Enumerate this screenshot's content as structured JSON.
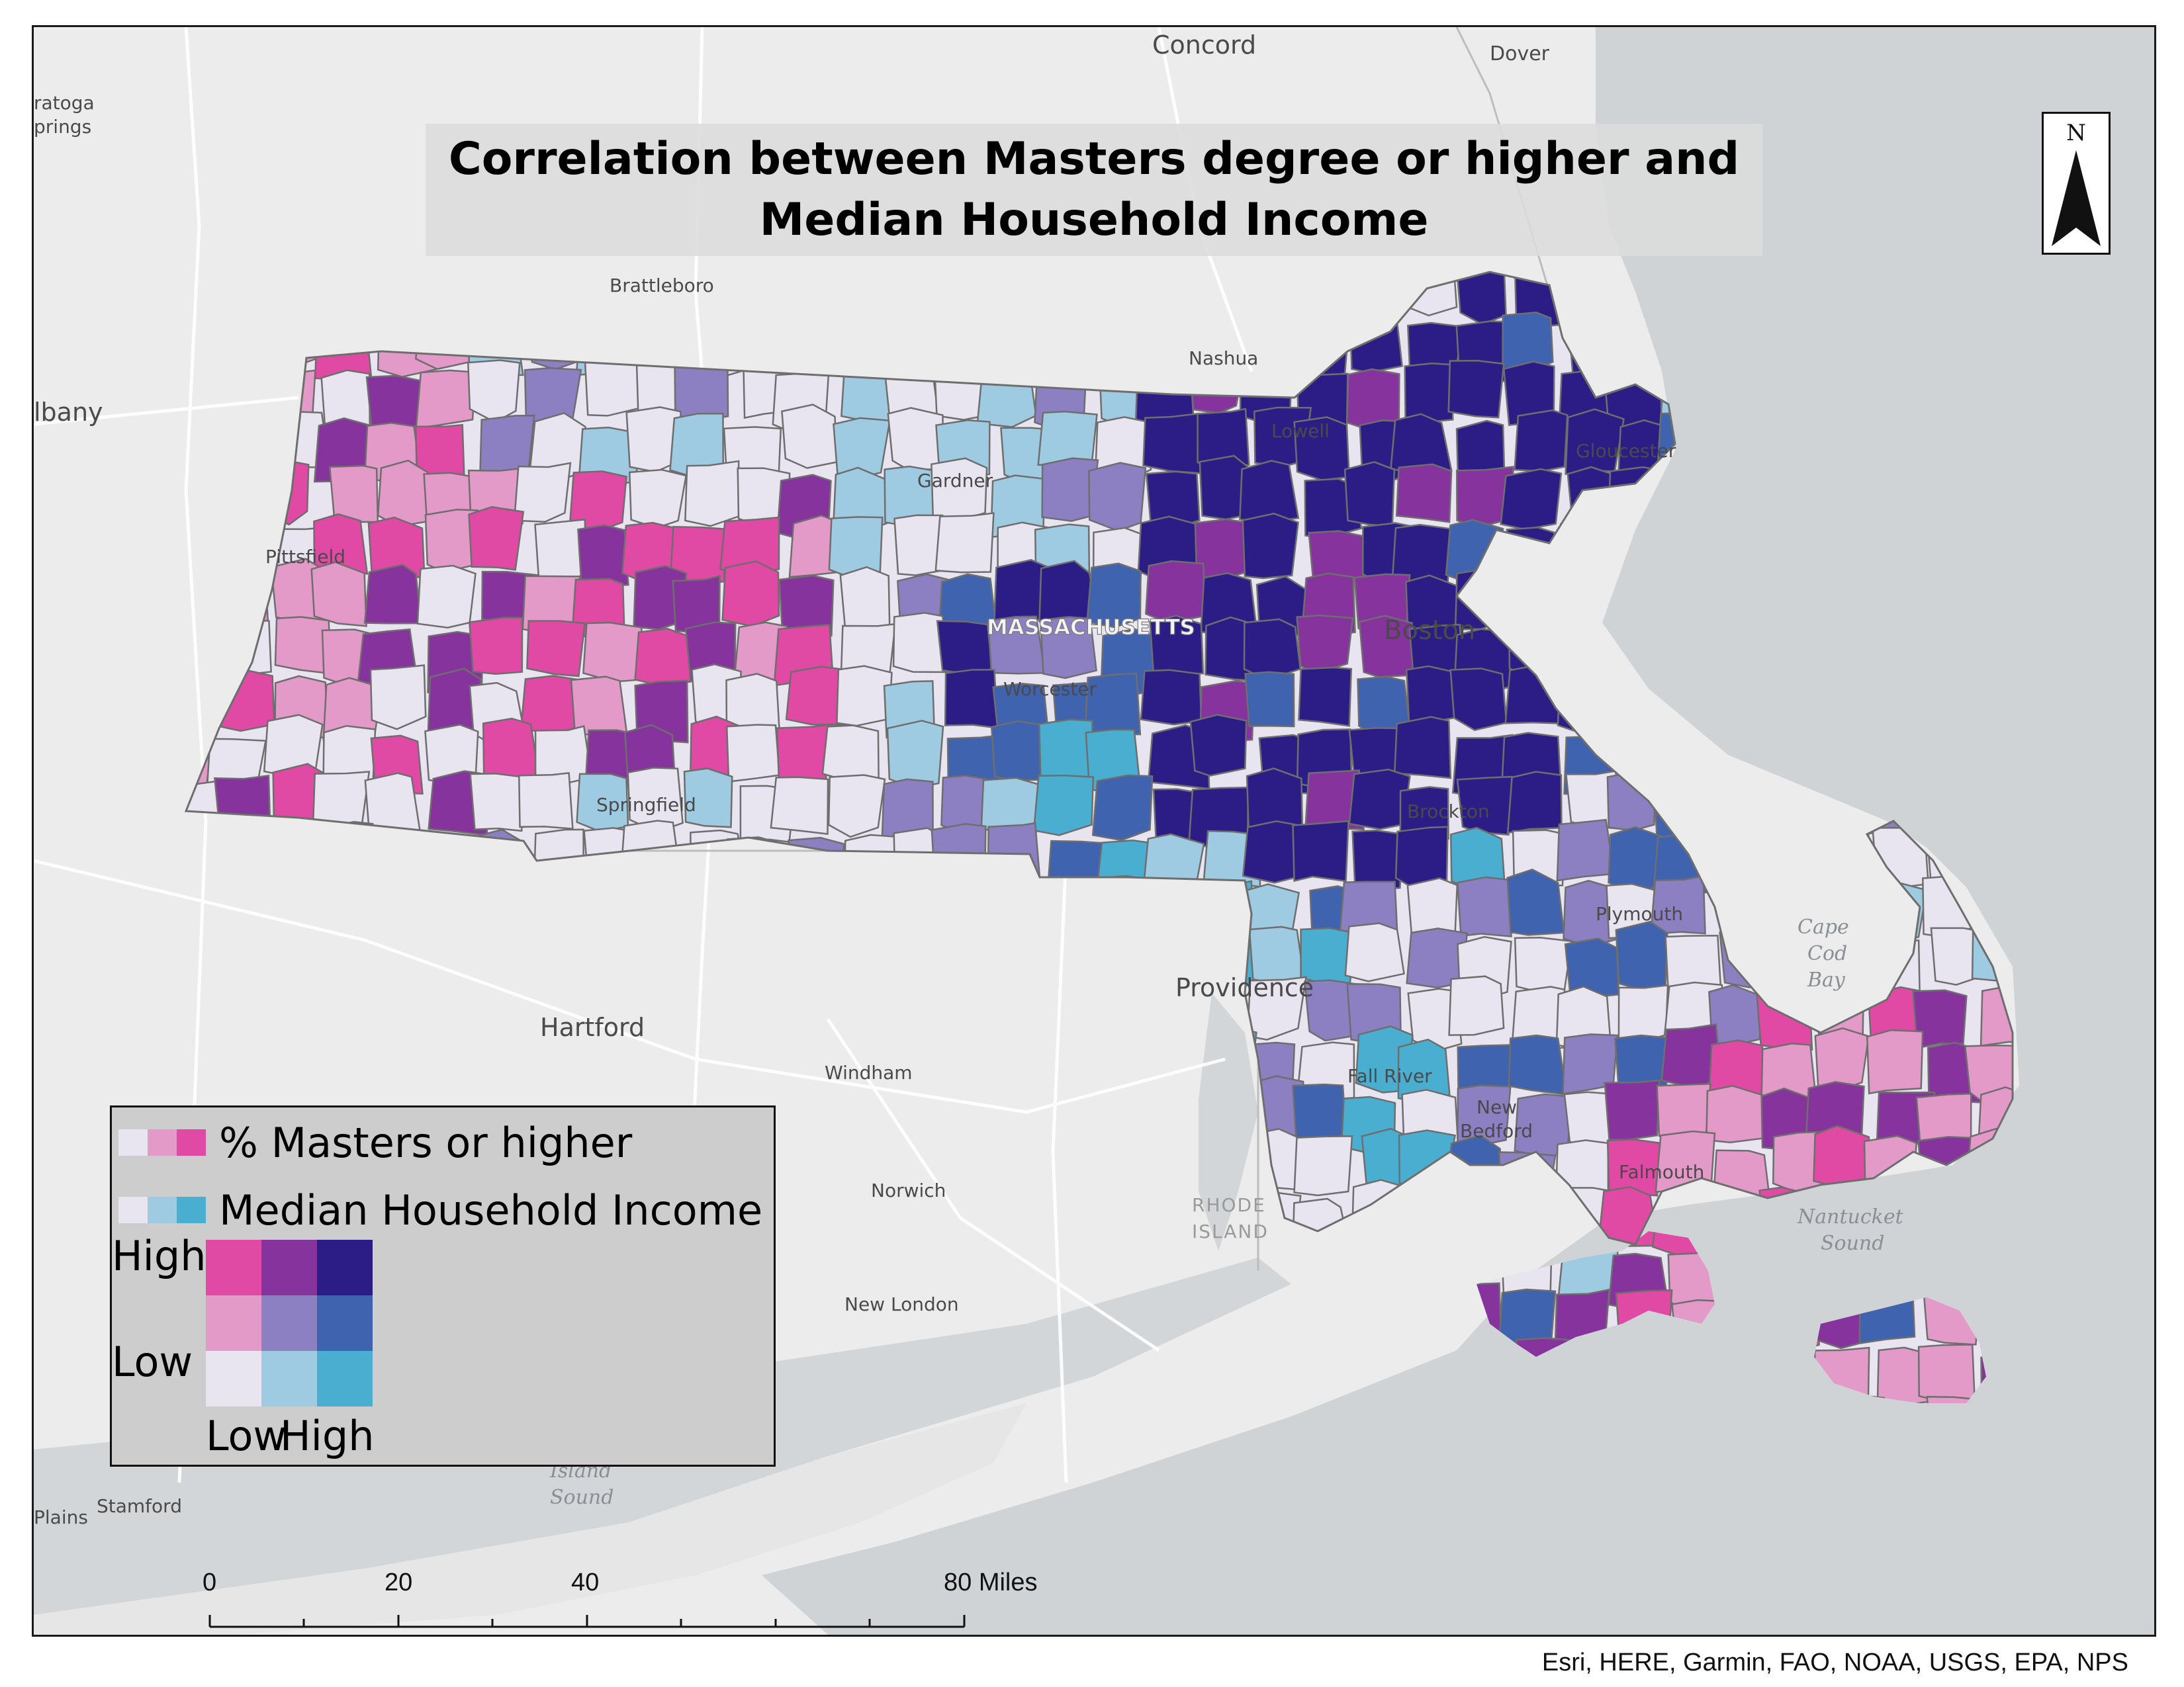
{
  "title": {
    "line1": "Correlation between Masters degree or higher and",
    "line2": "Median Household Income"
  },
  "north_arrow": {
    "letter": "N"
  },
  "place_labels": {
    "concord": "Concord",
    "dover": "Dover",
    "saratoga_springs_1": "ratoga",
    "saratoga_springs_2": "prings",
    "brattleboro": "Brattleboro",
    "nashua": "Nashua",
    "albany": "lbany",
    "lowell": "Lowell",
    "gloucester": "Gloucester",
    "gardner": "Gardner",
    "pittsfield": "Pittsfield",
    "massachusetts": "MASSACHUSETTS",
    "boston": "Boston",
    "worcester": "Worcester",
    "springfield": "Springfield",
    "brockton": "Brockton",
    "plymouth": "Plymouth",
    "providence": "Providence",
    "hartford": "Hartford",
    "windham": "Windham",
    "fall_river": "Fall River",
    "new_bedford_1": "New",
    "new_bedford_2": "Bedford",
    "falmouth": "Falmouth",
    "norwich": "Norwich",
    "rhode_island_1": "RHODE",
    "rhode_island_2": "ISLAND",
    "new_london": "New London",
    "stamford": "Stamford",
    "plains": "Plains"
  },
  "water_labels": {
    "cape_cod_bay_1": "Cape",
    "cape_cod_bay_2": "Cod",
    "cape_cod_bay_3": "Bay",
    "nantucket_sound_1": "Nantucket",
    "nantucket_sound_2": "Sound",
    "island_sound_1": "Island",
    "island_sound_2": "Sound"
  },
  "legend": {
    "row1_label": "% Masters or higher",
    "row2_label": "Median Household Income",
    "y_high": "High",
    "y_low": "Low",
    "x_low": "Low",
    "x_high": "High",
    "masters_ramp": [
      "#e8e4f0",
      "#e49ac8",
      "#e04aa4"
    ],
    "income_ramp": [
      "#e8e4f0",
      "#9ecbe2",
      "#4aaed0"
    ],
    "bivariate_grid": [
      [
        "#e04aa4",
        "#86339e",
        "#2c1d86"
      ],
      [
        "#e49ac8",
        "#8c80c2",
        "#3f63ae"
      ],
      [
        "#e8e4f0",
        "#9ecbe2",
        "#4aaed0"
      ]
    ]
  },
  "scale_bar": {
    "ticks": [
      "0",
      "20",
      "40",
      "80 Miles"
    ]
  },
  "attribution": "Esri, HERE, Garmin, FAO, NOAA, USGS, EPA, NPS"
}
